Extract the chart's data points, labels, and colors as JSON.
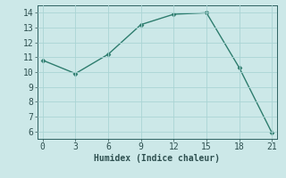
{
  "x": [
    0,
    3,
    6,
    9,
    12,
    15,
    18,
    21
  ],
  "y": [
    10.8,
    9.9,
    11.2,
    13.2,
    13.9,
    14.0,
    10.3,
    5.9
  ],
  "xlabel": "Humidex (Indice chaleur)",
  "xlim": [
    -0.5,
    21.5
  ],
  "ylim": [
    5.5,
    14.5
  ],
  "yticks": [
    6,
    7,
    8,
    9,
    10,
    11,
    12,
    13,
    14
  ],
  "xticks": [
    0,
    3,
    6,
    9,
    12,
    15,
    18,
    21
  ],
  "line_color": "#2e7d6e",
  "marker": "D",
  "marker_size": 2.5,
  "bg_color": "#cce8e8",
  "grid_color": "#aad4d4",
  "axis_color": "#2e6060",
  "tick_color": "#2e5050",
  "label_fontsize": 7,
  "tick_fontsize": 7
}
